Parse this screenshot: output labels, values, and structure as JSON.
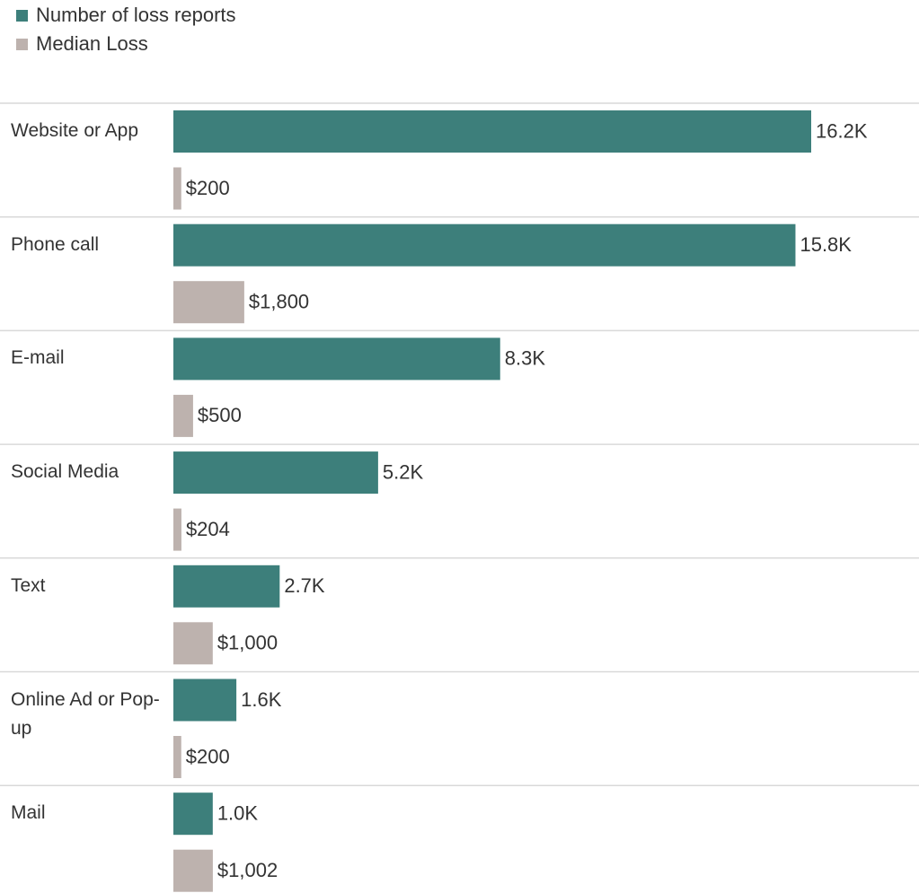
{
  "chart_data": {
    "type": "grouped-horizontal-bar",
    "categories": [
      "Website or App",
      "Phone call",
      "E-mail",
      "Social Media",
      "Text",
      "Online Ad or Pop-up",
      "Mail"
    ],
    "series": [
      {
        "name": "Number of loss reports",
        "color": "#3d7f7b",
        "values": [
          16200,
          15800,
          8300,
          5200,
          2700,
          1600,
          1000
        ],
        "value_labels": [
          "16.2K",
          "15.8K",
          "8.3K",
          "5.2K",
          "2.7K",
          "1.6K",
          "1.0K"
        ]
      },
      {
        "name": "Median Loss",
        "color": "#bdb2ae",
        "values": [
          200,
          1800,
          500,
          204,
          1000,
          200,
          1002
        ],
        "value_labels": [
          "$200",
          "$1,800",
          "$500",
          "$204",
          "$1,000",
          "$200",
          "$1,002"
        ]
      }
    ]
  }
}
